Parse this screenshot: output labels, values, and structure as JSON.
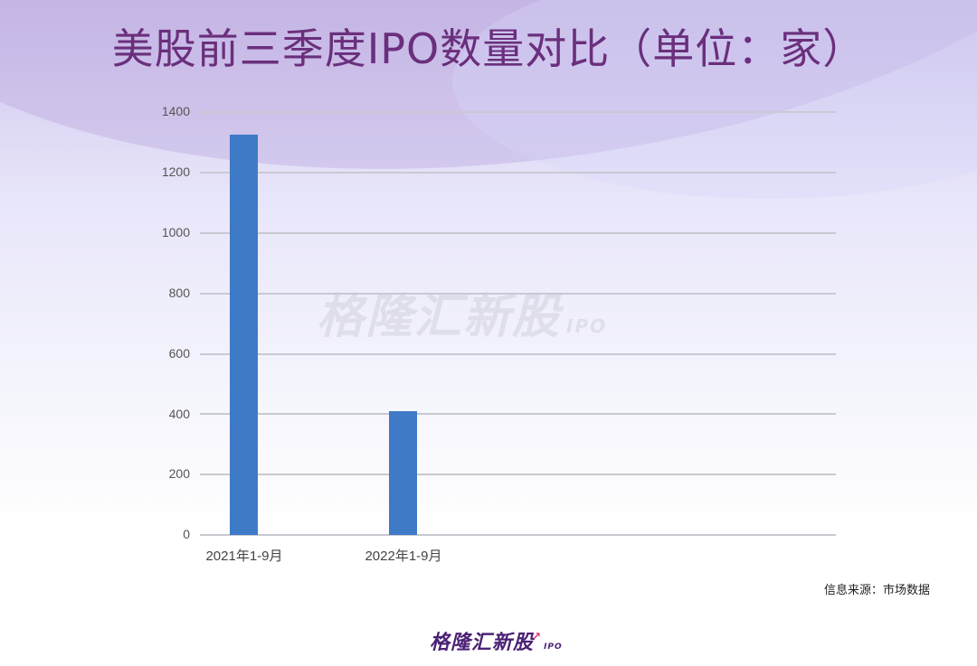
{
  "header": {
    "title": "美股前三季度IPO数量对比（单位：家）"
  },
  "watermark": {
    "text": "格隆汇新股",
    "sub": "IPO"
  },
  "footer": {
    "source": "信息来源：市场数据",
    "logo_text": "格隆汇新股",
    "logo_sub": "IPO"
  },
  "colors": {
    "bar": "#3f7ac6",
    "title": "#6a2f7c",
    "grid": "#c9c9d2"
  },
  "chart_data": {
    "type": "bar",
    "title": "美股前三季度IPO数量对比（单位：家）",
    "categories": [
      "2021年1-9月",
      "2022年1-9月"
    ],
    "values": [
      1325,
      409
    ],
    "xlabel": "",
    "ylabel": "",
    "ylim": [
      0,
      1400
    ],
    "yticks": [
      "0",
      "200",
      "400",
      "600",
      "800",
      "1000",
      "1200",
      "1400"
    ],
    "grid": true,
    "legend": null
  }
}
